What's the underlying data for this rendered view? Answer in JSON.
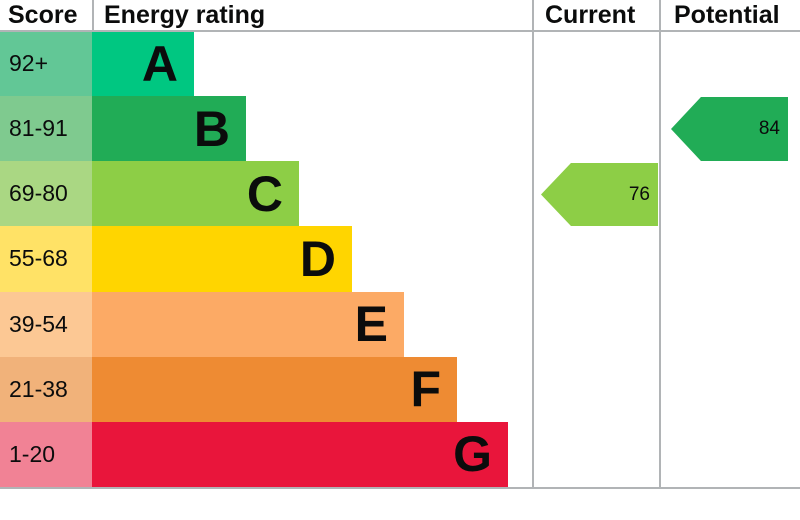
{
  "header": {
    "score": "Score",
    "energy_rating": "Energy rating",
    "current": "Current",
    "potential": "Potential"
  },
  "bands": [
    {
      "letter": "A",
      "score_range": "92+"
    },
    {
      "letter": "B",
      "score_range": "81-91"
    },
    {
      "letter": "C",
      "score_range": "69-80"
    },
    {
      "letter": "D",
      "score_range": "55-68"
    },
    {
      "letter": "E",
      "score_range": "39-54"
    },
    {
      "letter": "F",
      "score_range": "21-38"
    },
    {
      "letter": "G",
      "score_range": "1-20"
    }
  ],
  "markers": {
    "current": {
      "value": "76"
    },
    "potential": {
      "value": "84"
    }
  },
  "colors": {
    "band_a": "#00c781",
    "band_b": "#21ac56",
    "band_c": "#8dce46",
    "band_d": "#ffd500",
    "band_e": "#fcaa65",
    "band_f": "#ee8b33",
    "band_g": "#e9153b",
    "score_a": "#62c796",
    "score_b": "#7fca8f",
    "score_c": "#aad783",
    "score_d": "#ffe266",
    "score_e": "#fcc894",
    "score_f": "#f1b27a",
    "score_g": "#f18295",
    "border": "#b1b4b6",
    "text": "#0b0c0c"
  },
  "chart_data": {
    "type": "bar",
    "title": "Energy rating",
    "orientation": "horizontal-stepped",
    "categories": [
      "A",
      "B",
      "C",
      "D",
      "E",
      "F",
      "G"
    ],
    "score_ranges": [
      "92+",
      "81-91",
      "69-80",
      "55-68",
      "39-54",
      "21-38",
      "1-20"
    ],
    "band_colors": [
      "#00c781",
      "#21ac56",
      "#8dce46",
      "#ffd500",
      "#fcaa65",
      "#ee8b33",
      "#e9153b"
    ],
    "columns": [
      "Score",
      "Energy rating",
      "Current",
      "Potential"
    ],
    "markers": [
      {
        "name": "Current",
        "value": 76,
        "band": "C",
        "color": "#8dce46"
      },
      {
        "name": "Potential",
        "value": 84,
        "band": "B",
        "color": "#21ac56"
      }
    ],
    "layout_hint": "EPC-style chart: bar length increases from band A (shortest) to band G (longest); left-pointing arrows in Current and Potential columns aligned to the row of their band"
  }
}
